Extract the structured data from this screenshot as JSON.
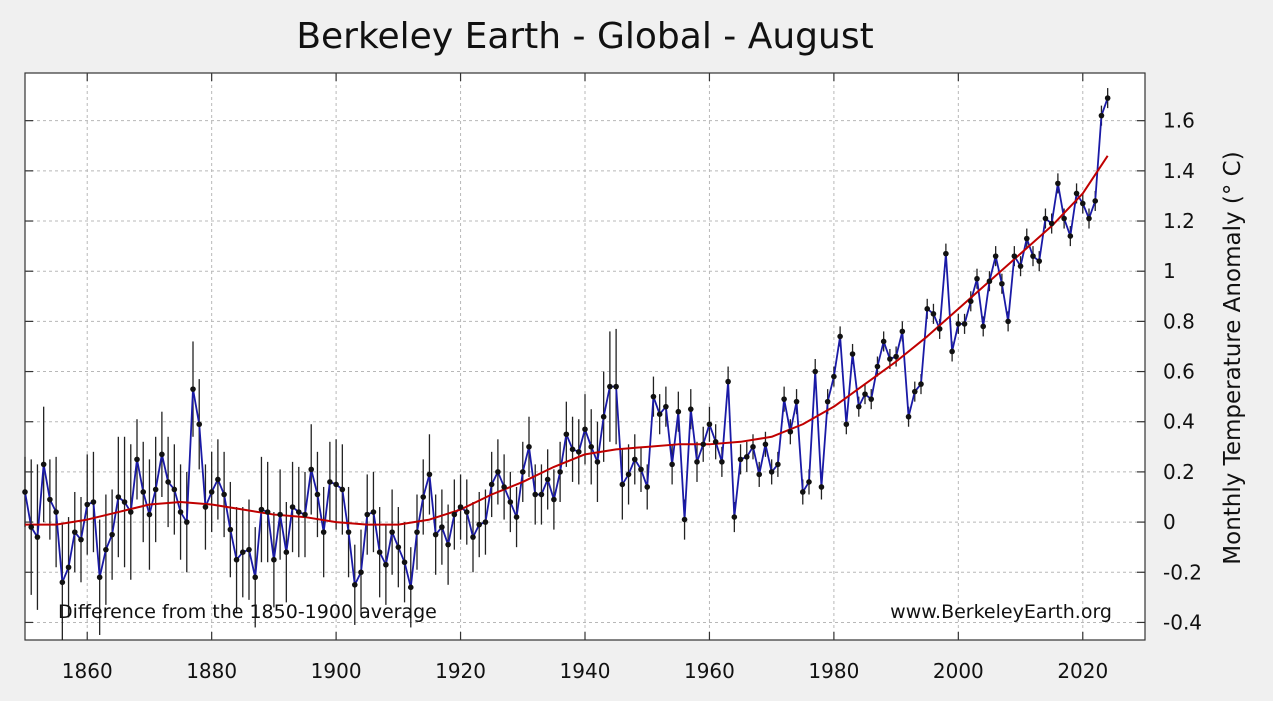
{
  "chart_data": {
    "type": "line",
    "title": "Berkeley Earth - Global - August",
    "xlabel": "",
    "ylabel": "Monthly Temperature Anomaly (° C)",
    "xlim": [
      1850,
      2030
    ],
    "ylim": [
      -0.47,
      1.79
    ],
    "x_ticks": [
      1860,
      1880,
      1900,
      1920,
      1940,
      1960,
      1980,
      2000,
      2020
    ],
    "y_ticks": [
      -0.4,
      -0.2,
      0,
      0.2,
      0.4,
      0.6,
      0.8,
      1,
      1.2,
      1.4,
      1.6
    ],
    "y_tick_labels": [
      "-0.4",
      "-0.2",
      "0",
      "0.2",
      "0.4",
      "0.6",
      "0.8",
      "1",
      "1.2",
      "1.4",
      "1.6"
    ],
    "grid": true,
    "annotations": {
      "baseline_note": "Difference from the 1850-1900 average",
      "source": "www.BerkeleyEarth.org"
    },
    "colors": {
      "annual": "#1a1aa6",
      "marker": "#111111",
      "uncertainty": "#222222",
      "trend": "#c00000"
    },
    "series": [
      {
        "years": [
          1850,
          1851,
          1852,
          1853,
          1854,
          1855,
          1856,
          1857,
          1858,
          1859,
          1860,
          1861,
          1862,
          1863,
          1864,
          1865,
          1866,
          1867,
          1868,
          1869,
          1870,
          1871,
          1872,
          1873,
          1874,
          1875,
          1876,
          1877,
          1878,
          1879,
          1880,
          1881,
          1882,
          1883,
          1884,
          1885,
          1886,
          1887,
          1888,
          1889,
          1890,
          1891,
          1892,
          1893,
          1894,
          1895,
          1896,
          1897,
          1898,
          1899,
          1900,
          1901,
          1902,
          1903,
          1904,
          1905,
          1906,
          1907,
          1908,
          1909,
          1910,
          1911,
          1912,
          1913,
          1914,
          1915,
          1916,
          1917,
          1918,
          1919,
          1920,
          1921,
          1922,
          1923,
          1924,
          1925,
          1926,
          1927,
          1928,
          1929,
          1930,
          1931,
          1932,
          1933,
          1934,
          1935,
          1936,
          1937,
          1938,
          1939,
          1940,
          1941,
          1942,
          1943,
          1944,
          1945,
          1946,
          1947,
          1948,
          1949,
          1950,
          1951,
          1952,
          1953,
          1954,
          1955,
          1956,
          1957,
          1958,
          1959,
          1960,
          1961,
          1962,
          1963,
          1964,
          1965,
          1966,
          1967,
          1968,
          1969,
          1970,
          1971,
          1972,
          1973,
          1974,
          1975,
          1976,
          1977,
          1978,
          1979,
          1980,
          1981,
          1982,
          1983,
          1984,
          1985,
          1986,
          1987,
          1988,
          1989,
          1990,
          1991,
          1992,
          1993,
          1994,
          1995,
          1996,
          1997,
          1998,
          1999,
          2000,
          2001,
          2002,
          2003,
          2004,
          2005,
          2006,
          2007,
          2008,
          2009,
          2010,
          2011,
          2012,
          2013,
          2014,
          2015,
          2016,
          2017,
          2018,
          2019,
          2020,
          2021,
          2022,
          2023,
          2024
        ],
        "values": [
          0.12,
          -0.02,
          -0.06,
          0.23,
          0.09,
          0.04,
          -0.24,
          -0.18,
          -0.04,
          -0.07,
          0.07,
          0.08,
          -0.22,
          -0.11,
          -0.05,
          0.1,
          0.08,
          0.04,
          0.25,
          0.12,
          0.03,
          0.13,
          0.27,
          0.16,
          0.13,
          0.04,
          0.0,
          0.53,
          0.39,
          0.06,
          0.12,
          0.17,
          0.11,
          -0.03,
          -0.15,
          -0.12,
          -0.11,
          -0.22,
          0.05,
          0.04,
          -0.15,
          0.03,
          -0.12,
          0.06,
          0.04,
          0.03,
          0.21,
          0.11,
          -0.04,
          0.16,
          0.15,
          0.13,
          -0.04,
          -0.25,
          -0.2,
          0.03,
          0.04,
          -0.12,
          -0.17,
          -0.04,
          -0.1,
          -0.16,
          -0.26,
          -0.04,
          0.1,
          0.19,
          -0.05,
          -0.02,
          -0.09,
          0.03,
          0.06,
          0.04,
          -0.06,
          -0.01,
          0.0,
          0.15,
          0.2,
          0.14,
          0.08,
          0.02,
          0.2,
          0.3,
          0.11,
          0.11,
          0.17,
          0.09,
          0.2,
          0.35,
          0.29,
          0.28,
          0.37,
          0.3,
          0.24,
          0.42,
          0.54,
          0.54,
          0.15,
          0.19,
          0.25,
          0.21,
          0.14,
          0.5,
          0.43,
          0.46,
          0.23,
          0.44,
          0.01,
          0.45,
          0.24,
          0.31,
          0.39,
          0.32,
          0.24,
          0.56,
          0.02,
          0.25,
          0.26,
          0.3,
          0.19,
          0.31,
          0.2,
          0.23,
          0.49,
          0.36,
          0.48,
          0.12,
          0.16,
          0.6,
          0.14,
          0.48,
          0.58,
          0.74,
          0.39,
          0.67,
          0.46,
          0.51,
          0.49,
          0.62,
          0.72,
          0.65,
          0.66,
          0.76,
          0.42,
          0.52,
          0.55,
          0.85,
          0.83,
          0.77,
          1.07,
          0.68,
          0.79,
          0.79,
          0.88,
          0.97,
          0.78,
          0.96,
          1.06,
          0.95,
          0.8,
          1.06,
          1.02,
          1.13,
          1.06,
          1.04,
          1.21,
          1.19,
          1.35,
          1.21,
          1.14,
          1.31,
          1.27,
          1.21,
          1.28,
          1.62,
          1.69
        ],
        "uncertainty": [
          0.14,
          0.27,
          0.29,
          0.23,
          0.16,
          0.22,
          0.23,
          0.2,
          0.16,
          0.17,
          0.2,
          0.2,
          0.23,
          0.22,
          0.18,
          0.24,
          0.26,
          0.27,
          0.16,
          0.2,
          0.22,
          0.21,
          0.17,
          0.18,
          0.18,
          0.19,
          0.2,
          0.19,
          0.18,
          0.17,
          0.16,
          0.16,
          0.17,
          0.19,
          0.21,
          0.18,
          0.2,
          0.2,
          0.21,
          0.2,
          0.19,
          0.18,
          0.2,
          0.18,
          0.18,
          0.17,
          0.18,
          0.17,
          0.18,
          0.16,
          0.18,
          0.18,
          0.18,
          0.16,
          0.17,
          0.16,
          0.16,
          0.18,
          0.16,
          0.17,
          0.16,
          0.16,
          0.16,
          0.15,
          0.15,
          0.16,
          0.16,
          0.15,
          0.16,
          0.14,
          0.13,
          0.13,
          0.14,
          0.13,
          0.13,
          0.13,
          0.13,
          0.13,
          0.12,
          0.12,
          0.12,
          0.12,
          0.12,
          0.12,
          0.12,
          0.12,
          0.12,
          0.13,
          0.13,
          0.13,
          0.14,
          0.15,
          0.16,
          0.18,
          0.22,
          0.23,
          0.14,
          0.12,
          0.1,
          0.09,
          0.09,
          0.08,
          0.08,
          0.08,
          0.08,
          0.08,
          0.08,
          0.08,
          0.08,
          0.07,
          0.07,
          0.07,
          0.06,
          0.06,
          0.06,
          0.06,
          0.06,
          0.05,
          0.05,
          0.05,
          0.05,
          0.05,
          0.05,
          0.05,
          0.05,
          0.05,
          0.05,
          0.05,
          0.05,
          0.05,
          0.04,
          0.04,
          0.04,
          0.04,
          0.04,
          0.04,
          0.04,
          0.04,
          0.04,
          0.04,
          0.04,
          0.04,
          0.04,
          0.04,
          0.04,
          0.04,
          0.04,
          0.04,
          0.04,
          0.04,
          0.04,
          0.04,
          0.04,
          0.04,
          0.04,
          0.04,
          0.04,
          0.04,
          0.04,
          0.04,
          0.04,
          0.04,
          0.04,
          0.04,
          0.04,
          0.04,
          0.04,
          0.04,
          0.04,
          0.04,
          0.04,
          0.04,
          0.04,
          0.04,
          0.04,
          0.04,
          0.04
        ]
      },
      {
        "x": [
          1850,
          1855,
          1860,
          1865,
          1870,
          1875,
          1880,
          1885,
          1890,
          1895,
          1900,
          1905,
          1910,
          1915,
          1920,
          1925,
          1930,
          1935,
          1940,
          1945,
          1950,
          1955,
          1960,
          1965,
          1970,
          1975,
          1980,
          1985,
          1990,
          1995,
          2000,
          2005,
          2010,
          2015,
          2020,
          2024
        ],
        "values": [
          -0.01,
          -0.01,
          0.01,
          0.04,
          0.07,
          0.08,
          0.07,
          0.05,
          0.03,
          0.02,
          0.0,
          -0.01,
          -0.01,
          0.01,
          0.05,
          0.11,
          0.16,
          0.22,
          0.27,
          0.29,
          0.3,
          0.31,
          0.31,
          0.32,
          0.34,
          0.39,
          0.46,
          0.55,
          0.64,
          0.74,
          0.85,
          0.96,
          1.07,
          1.18,
          1.31,
          1.46
        ]
      }
    ]
  }
}
